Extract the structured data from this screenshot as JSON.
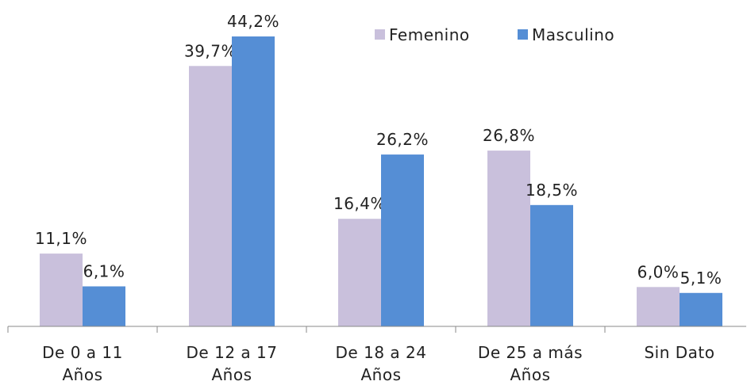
{
  "chart_data": {
    "type": "bar",
    "categories": [
      [
        "De 0 a 11",
        "Años"
      ],
      [
        "De 12 a 17",
        "Años"
      ],
      [
        "De 18 a 24",
        "Años"
      ],
      [
        "De 25 a más",
        "Años"
      ],
      [
        "Sin Dato"
      ]
    ],
    "series": [
      {
        "name": "Femenino",
        "color": "#c9c0dc",
        "values": [
          11.1,
          39.7,
          16.4,
          26.8,
          6.0
        ],
        "value_labels": [
          "11,1%",
          "39,7%",
          "16,4%",
          "26,8%",
          "6,0%"
        ]
      },
      {
        "name": "Masculino",
        "color": "#558ed5",
        "values": [
          6.1,
          44.2,
          26.2,
          18.5,
          5.1
        ],
        "value_labels": [
          "6,1%",
          "44,2%",
          "26,2%",
          "18,5%",
          "5,1%"
        ]
      }
    ],
    "ylim": [
      0,
      50
    ],
    "legend": "top-right"
  }
}
